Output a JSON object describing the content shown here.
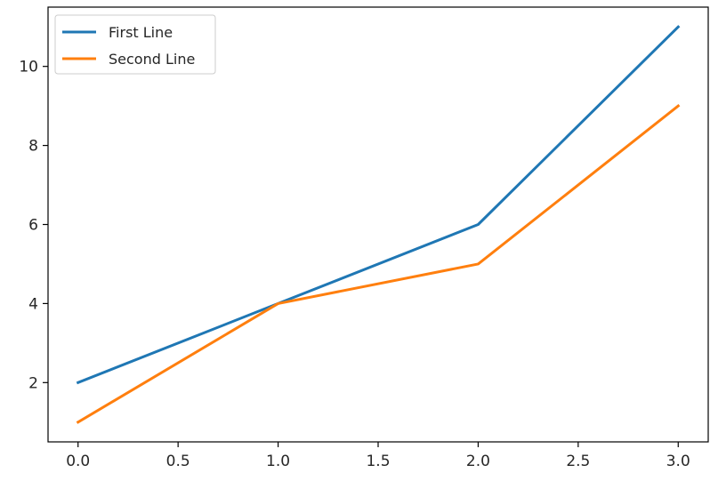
{
  "chart_data": {
    "type": "line",
    "title": "",
    "xlabel": "",
    "ylabel": "",
    "x": [
      0,
      1,
      2,
      3
    ],
    "xlim": [
      -0.15,
      3.15
    ],
    "ylim": [
      0.5,
      11.5
    ],
    "xticks": [
      0.0,
      0.5,
      1.0,
      1.5,
      2.0,
      2.5,
      3.0
    ],
    "xtick_labels": [
      "0.0",
      "0.5",
      "1.0",
      "1.5",
      "2.0",
      "2.5",
      "3.0"
    ],
    "yticks": [
      2,
      4,
      6,
      8,
      10
    ],
    "ytick_labels": [
      "2",
      "4",
      "6",
      "8",
      "10"
    ],
    "grid": false,
    "legend": "upper-left",
    "series": [
      {
        "name": "First Line",
        "color": "#1f77b4",
        "values": [
          2,
          4,
          6,
          11
        ]
      },
      {
        "name": "Second Line",
        "color": "#ff7f0e",
        "values": [
          1,
          4,
          5,
          9
        ]
      }
    ]
  }
}
